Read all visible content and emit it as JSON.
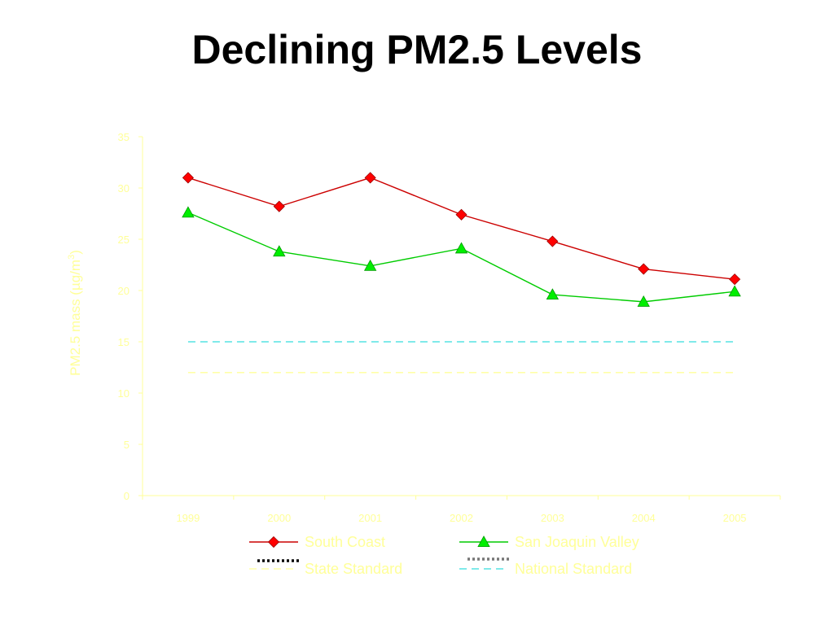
{
  "slide": {
    "title": "Declining PM2.5 Levels"
  },
  "colors": {
    "background": "#ffffff",
    "title": "#000000",
    "axis_and_labels": "#ffff99",
    "south_coast": "#cc0000",
    "south_coast_marker": "#ff0000",
    "san_joaquin": "#00cc00",
    "san_joaquin_marker": "#00ee00",
    "state_standard": "#ffff99",
    "national_standard": "#33dddd",
    "legend_black_dots": "#000000",
    "legend_gray_dots": "#777777"
  },
  "chart_data": {
    "type": "line",
    "title": "",
    "xlabel": "",
    "ylabel": "PM2.5 mass (µg/m",
    "ylabel_superscript": "3",
    "ylabel_suffix": ")",
    "x": [
      "1999",
      "2000",
      "2001",
      "2002",
      "2003",
      "2004",
      "2005"
    ],
    "ylim": [
      0,
      35
    ],
    "yticks": [
      "0",
      "5",
      "10",
      "15",
      "20",
      "25",
      "30",
      "35"
    ],
    "grid": false,
    "legend_position": "bottom",
    "series": [
      {
        "name": "South Coast",
        "marker": "diamond",
        "values": [
          31.0,
          28.2,
          31.0,
          27.4,
          24.8,
          22.1,
          21.1
        ]
      },
      {
        "name": "San Joaquin Valley",
        "marker": "triangle",
        "values": [
          27.6,
          23.8,
          22.4,
          24.1,
          19.6,
          18.9,
          19.9
        ]
      }
    ],
    "reference_lines": [
      {
        "name": "State Standard",
        "value": 12,
        "style": "dashed"
      },
      {
        "name": "National Standard",
        "value": 15,
        "style": "dashed"
      }
    ]
  }
}
